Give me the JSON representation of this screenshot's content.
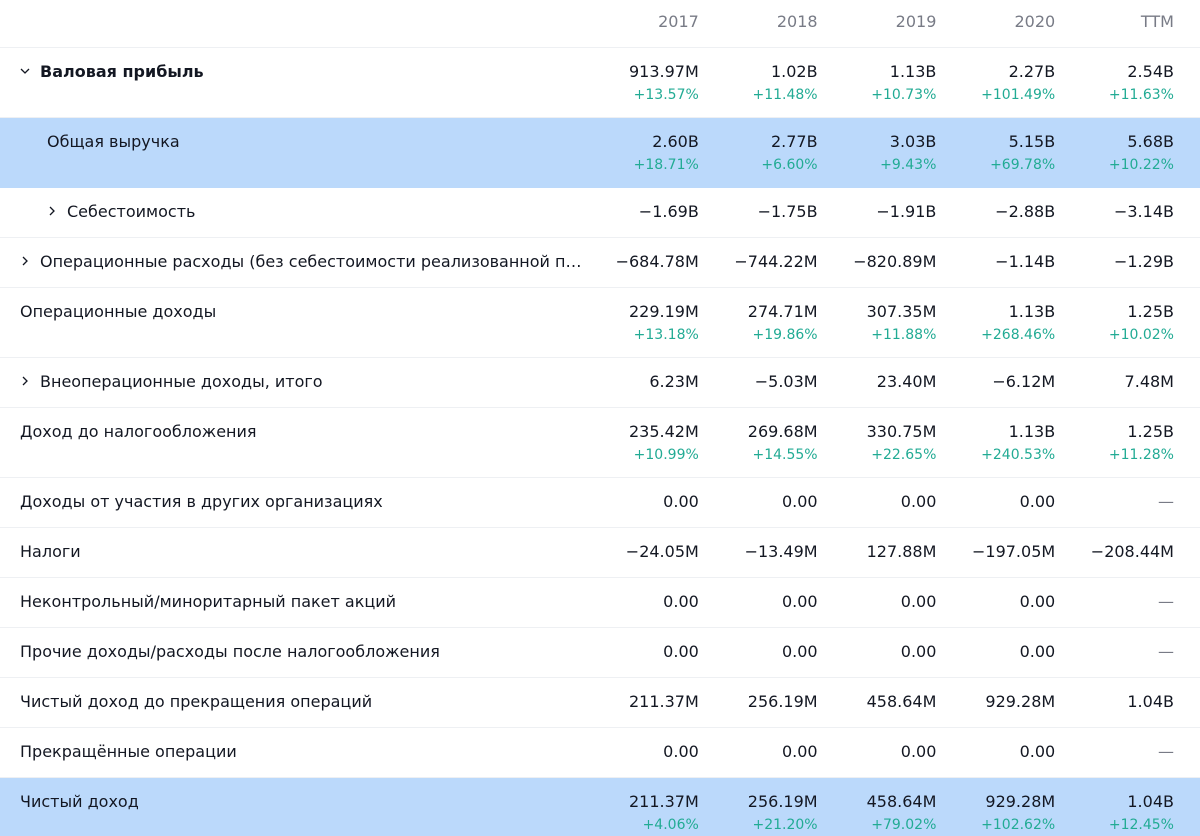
{
  "header": {
    "years": [
      "2017",
      "2018",
      "2019",
      "2020",
      "TTM"
    ]
  },
  "rows": [
    {
      "label": "Валовая прибыль",
      "values": [
        "913.97M",
        "1.02B",
        "1.13B",
        "2.27B",
        "2.54B"
      ],
      "changes": [
        "+13.57%",
        "+11.48%",
        "+10.73%",
        "+101.49%",
        "+11.63%"
      ]
    },
    {
      "label": "Общая выручка",
      "values": [
        "2.60B",
        "2.77B",
        "3.03B",
        "5.15B",
        "5.68B"
      ],
      "changes": [
        "+18.71%",
        "+6.60%",
        "+9.43%",
        "+69.78%",
        "+10.22%"
      ]
    },
    {
      "label": "Себестоимость",
      "values": [
        "−1.69B",
        "−1.75B",
        "−1.91B",
        "−2.88B",
        "−3.14B"
      ]
    },
    {
      "label": "Операционные расходы (без себестоимости реализованной продукции)",
      "values": [
        "−684.78M",
        "−744.22M",
        "−820.89M",
        "−1.14B",
        "−1.29B"
      ]
    },
    {
      "label": "Операционные доходы",
      "values": [
        "229.19M",
        "274.71M",
        "307.35M",
        "1.13B",
        "1.25B"
      ],
      "changes": [
        "+13.18%",
        "+19.86%",
        "+11.88%",
        "+268.46%",
        "+10.02%"
      ]
    },
    {
      "label": "Внеоперационные доходы, итого",
      "values": [
        "6.23M",
        "−5.03M",
        "23.40M",
        "−6.12M",
        "7.48M"
      ]
    },
    {
      "label": "Доход до налогообложения",
      "values": [
        "235.42M",
        "269.68M",
        "330.75M",
        "1.13B",
        "1.25B"
      ],
      "changes": [
        "+10.99%",
        "+14.55%",
        "+22.65%",
        "+240.53%",
        "+11.28%"
      ]
    },
    {
      "label": "Доходы от участия в других организациях",
      "values": [
        "0.00",
        "0.00",
        "0.00",
        "0.00",
        "—"
      ]
    },
    {
      "label": "Налоги",
      "values": [
        "−24.05M",
        "−13.49M",
        "127.88M",
        "−197.05M",
        "−208.44M"
      ]
    },
    {
      "label": "Неконтрольный/миноритарный пакет акций",
      "values": [
        "0.00",
        "0.00",
        "0.00",
        "0.00",
        "—"
      ]
    },
    {
      "label": "Прочие доходы/расходы после налогообложения",
      "values": [
        "0.00",
        "0.00",
        "0.00",
        "0.00",
        "—"
      ]
    },
    {
      "label": "Чистый доход до прекращения операций",
      "values": [
        "211.37M",
        "256.19M",
        "458.64M",
        "929.28M",
        "1.04B"
      ]
    },
    {
      "label": "Прекращённые операции",
      "values": [
        "0.00",
        "0.00",
        "0.00",
        "0.00",
        "—"
      ]
    },
    {
      "label": "Чистый доход",
      "values": [
        "211.37M",
        "256.19M",
        "458.64M",
        "929.28M",
        "1.04B"
      ],
      "changes": [
        "+4.06%",
        "+21.20%",
        "+79.02%",
        "+102.62%",
        "+12.45%"
      ]
    }
  ],
  "colors": {
    "highlight": "#bbd9fb",
    "positive_change": "#22ab94",
    "muted": "#787b86"
  }
}
